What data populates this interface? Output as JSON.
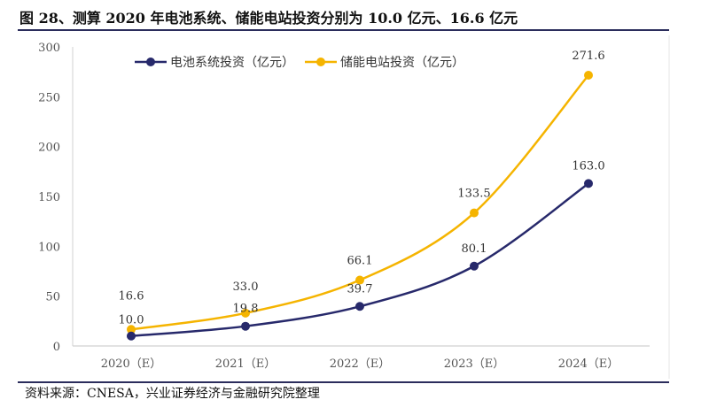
{
  "title": "图 28、测算 2020 年电池系统、储能电站投资分别为 10.0 亿元、16.6 亿元",
  "source": "资料来源：CNESA，兴业证券经济与金融研究院整理",
  "chart_data": {
    "type": "line",
    "categories": [
      "2020（E）",
      "2021（E）",
      "2022（E）",
      "2023（E）",
      "2024（E）"
    ],
    "ylim": [
      0,
      300
    ],
    "yticks": [
      0,
      50,
      100,
      150,
      200,
      250,
      300
    ],
    "grid": false,
    "legend_position": "top",
    "series": [
      {
        "name": "电池系统投资（亿元）",
        "color": "#27296b",
        "values": [
          10.0,
          19.8,
          39.7,
          80.1,
          163.0
        ],
        "labels": [
          "10.0",
          "19.8",
          "39.7",
          "80.1",
          "163.0"
        ]
      },
      {
        "name": "储能电站投资（亿元）",
        "color": "#f5b400",
        "values": [
          16.6,
          33.0,
          66.1,
          133.5,
          271.6
        ],
        "labels": [
          "16.6",
          "33.0",
          "66.1",
          "133.5",
          "271.6"
        ]
      }
    ]
  }
}
